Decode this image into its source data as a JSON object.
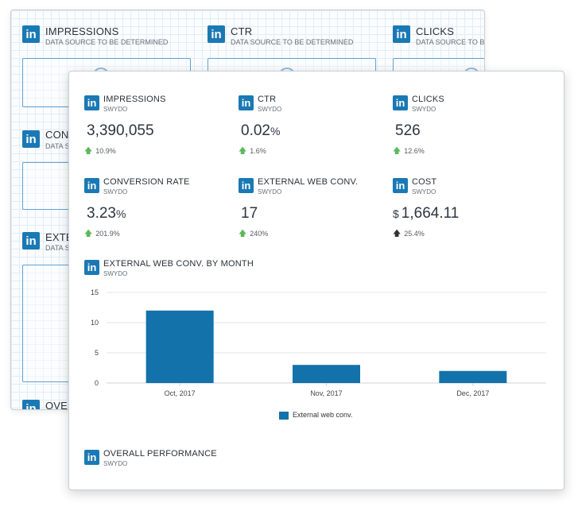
{
  "background_widgets": [
    {
      "title": "IMPRESSIONS",
      "source": "DATA SOURCE TO BE DETERMINED"
    },
    {
      "title": "CTR",
      "source": "DATA SOURCE TO BE DETERMINED"
    },
    {
      "title": "CLICKS",
      "source": "DATA SOURCE TO BE DETERMINED"
    },
    {
      "title": "CONV",
      "source": "DATA SO"
    },
    {
      "title": "EXTE",
      "source": "DATA SO"
    },
    {
      "title": "OVE",
      "source": ""
    }
  ],
  "logo_text": "in",
  "kpis": [
    {
      "title": "IMPRESSIONS",
      "source": "SWYDO",
      "value": "3,390,055",
      "unit": "",
      "currency": "",
      "change": "10.9%",
      "arrow": "green"
    },
    {
      "title": "CTR",
      "source": "SWYDO",
      "value": "0.02",
      "unit": "%",
      "currency": "",
      "change": "1.6%",
      "arrow": "green"
    },
    {
      "title": "CLICKS",
      "source": "SWYDO",
      "value": "526",
      "unit": "",
      "currency": "",
      "change": "12.6%",
      "arrow": "green"
    },
    {
      "title": "CONVERSION RATE",
      "source": "SWYDO",
      "value": "3.23",
      "unit": "%",
      "currency": "",
      "change": "201.9%",
      "arrow": "green"
    },
    {
      "title": "EXTERNAL WEB CONV.",
      "source": "SWYDO",
      "value": "17",
      "unit": "",
      "currency": "",
      "change": "240%",
      "arrow": "green"
    },
    {
      "title": "COST",
      "source": "SWYDO",
      "value": "1,664.11",
      "unit": "",
      "currency": "$",
      "change": "25.4%",
      "arrow": "dark"
    }
  ],
  "chart_section": {
    "title": "EXTERNAL WEB CONV. BY MONTH",
    "source": "SWYDO"
  },
  "overall": {
    "title": "OVERALL PERFORMANCE",
    "source": "SWYDO"
  },
  "colors": {
    "linkedin": "#1a79b4",
    "bar": "#1372a9",
    "arrow_up": "#5cb85c",
    "arrow_dark": "#333333"
  },
  "chart_data": {
    "type": "bar",
    "categories": [
      "Oct, 2017",
      "Nov, 2017",
      "Dec, 2017"
    ],
    "series": [
      {
        "name": "External web conv.",
        "values": [
          12,
          3,
          2
        ]
      }
    ],
    "ylim": [
      0,
      15
    ],
    "yticks": [
      0,
      5,
      10,
      15
    ],
    "grid": true,
    "legend": "bottom"
  }
}
